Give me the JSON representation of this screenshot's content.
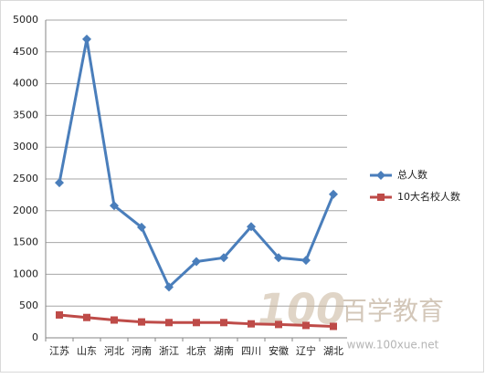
{
  "chart_data": {
    "type": "line",
    "categories": [
      "江苏",
      "山东",
      "河北",
      "河南",
      "浙江",
      "北京",
      "湖南",
      "四川",
      "安徽",
      "辽宁",
      "湖北"
    ],
    "series": [
      {
        "name": "总人数",
        "color": "#4a7ebb",
        "marker": "diamond",
        "values": [
          2440,
          4700,
          2080,
          1740,
          800,
          1200,
          1260,
          1750,
          1260,
          1220,
          2260
        ]
      },
      {
        "name": "10大名校人数",
        "color": "#be4b48",
        "marker": "square",
        "values": [
          360,
          320,
          280,
          250,
          240,
          240,
          240,
          220,
          210,
          195,
          180
        ]
      }
    ],
    "ylim": [
      0,
      5000
    ],
    "yticks": [
      0,
      500,
      1000,
      1500,
      2000,
      2500,
      3000,
      3500,
      4000,
      4500,
      5000
    ],
    "grid": true,
    "legend": "right",
    "watermark": {
      "logo": "100",
      "name": "百学教育",
      "url": "www.100xue.net"
    }
  }
}
